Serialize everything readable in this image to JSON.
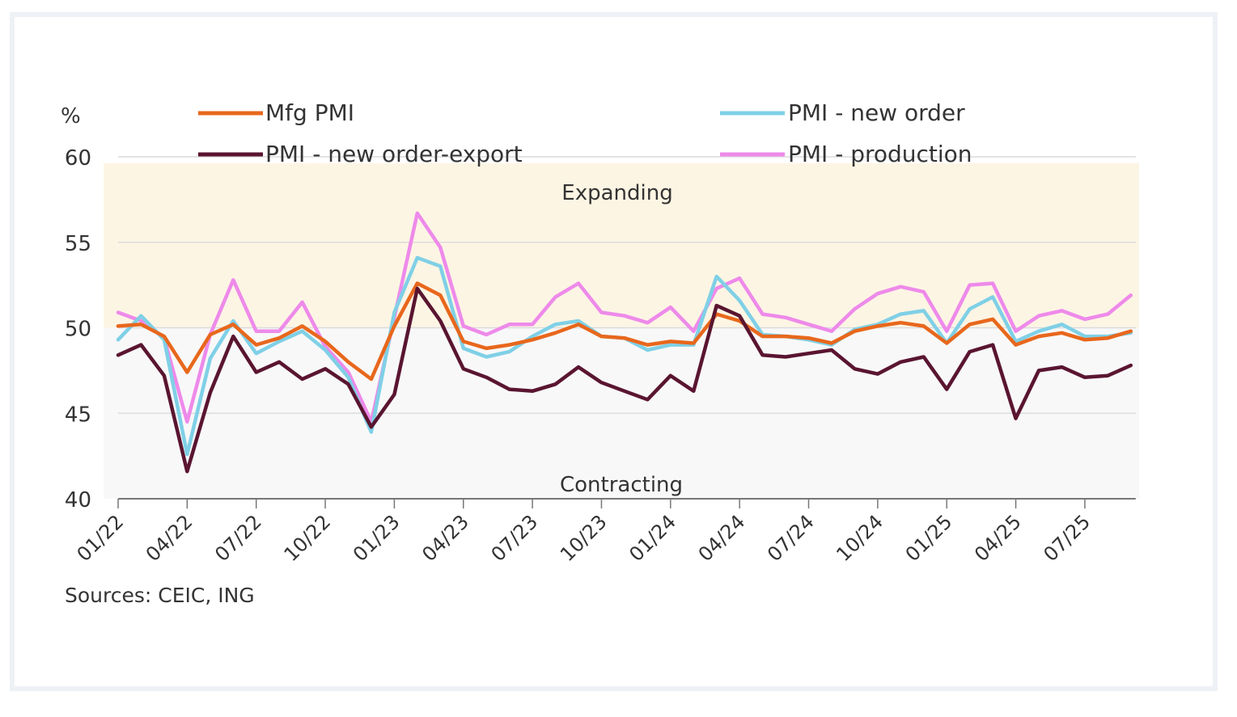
{
  "chart_data": {
    "type": "line",
    "title": "",
    "ylabel": "%",
    "xlabel": "",
    "ylim": [
      40,
      60
    ],
    "yticks": [
      60,
      55,
      50,
      45,
      40
    ],
    "grid": true,
    "legend_placement": "top",
    "source": "Sources: CEIC, ING",
    "bands": [
      {
        "label": "Expanding",
        "from": 50,
        "to": 60,
        "color": "#fdf5e4"
      },
      {
        "label": "Contracting",
        "from": 40,
        "to": 50,
        "color": "#f8f8f9"
      }
    ],
    "x": [
      "01/22",
      "02/22",
      "03/22",
      "04/22",
      "05/22",
      "06/22",
      "07/22",
      "08/22",
      "09/22",
      "10/22",
      "11/22",
      "12/22",
      "01/23",
      "02/23",
      "03/23",
      "04/23",
      "05/23",
      "06/23",
      "07/23",
      "08/23",
      "09/23",
      "10/23",
      "11/23",
      "12/23",
      "01/24",
      "02/24",
      "03/24",
      "04/24",
      "05/24",
      "06/24",
      "07/24",
      "08/24",
      "09/24",
      "10/24",
      "11/24",
      "12/24",
      "01/25",
      "02/25",
      "03/25",
      "04/25",
      "05/25",
      "06/25",
      "07/25",
      "08/25",
      "09/25"
    ],
    "xtick_labels": [
      "01/22",
      "04/22",
      "07/22",
      "10/22",
      "01/23",
      "04/23",
      "07/23",
      "10/23",
      "01/24",
      "04/24",
      "07/24",
      "10/24",
      "01/25",
      "04/25",
      "07/25"
    ],
    "series": [
      {
        "name": "Mfg PMI",
        "color": "#e8671c",
        "values": [
          50.1,
          50.2,
          49.5,
          47.4,
          49.6,
          50.2,
          49.0,
          49.4,
          50.1,
          49.2,
          48.0,
          47.0,
          50.1,
          52.6,
          51.9,
          49.2,
          48.8,
          49.0,
          49.3,
          49.7,
          50.2,
          49.5,
          49.4,
          49.0,
          49.2,
          49.1,
          50.8,
          50.4,
          49.5,
          49.5,
          49.4,
          49.1,
          49.8,
          50.1,
          50.3,
          50.1,
          49.1,
          50.2,
          50.5,
          49.0,
          49.5,
          49.7,
          49.3,
          49.4,
          49.8
        ]
      },
      {
        "name": "PMI - new order-export",
        "color": "#5a1530",
        "values": [
          48.4,
          49.0,
          47.2,
          41.6,
          46.2,
          49.5,
          47.4,
          48.0,
          47.0,
          47.6,
          46.7,
          44.2,
          46.1,
          52.3,
          50.4,
          47.6,
          47.1,
          46.4,
          46.3,
          46.7,
          47.7,
          46.8,
          46.3,
          45.8,
          47.2,
          46.3,
          51.3,
          50.7,
          48.4,
          48.3,
          48.5,
          48.7,
          47.6,
          47.3,
          48.0,
          48.3,
          46.4,
          48.6,
          49.0,
          44.7,
          47.5,
          47.7,
          47.1,
          47.2,
          47.8
        ]
      },
      {
        "name": "PMI - new order",
        "color": "#7fd0e6",
        "values": [
          49.3,
          50.7,
          49.3,
          42.6,
          48.2,
          50.4,
          48.5,
          49.2,
          49.8,
          48.7,
          47.1,
          43.9,
          50.9,
          54.1,
          53.6,
          48.8,
          48.3,
          48.6,
          49.5,
          50.2,
          50.4,
          49.5,
          49.4,
          48.7,
          49.0,
          49.0,
          53.0,
          51.6,
          49.6,
          49.5,
          49.3,
          49.0,
          49.9,
          50.2,
          50.8,
          51.0,
          49.1,
          51.1,
          51.8,
          49.2,
          49.8,
          50.2,
          49.5,
          49.5,
          49.7
        ]
      },
      {
        "name": "PMI - production",
        "color": "#ee8aea",
        "values": [
          50.9,
          50.4,
          49.4,
          44.5,
          49.6,
          52.8,
          49.8,
          49.8,
          51.5,
          48.9,
          47.4,
          44.5,
          50.6,
          56.7,
          54.7,
          50.1,
          49.6,
          50.2,
          50.2,
          51.8,
          52.6,
          50.9,
          50.7,
          50.3,
          51.2,
          49.8,
          52.3,
          52.9,
          50.8,
          50.6,
          50.2,
          49.8,
          51.1,
          52.0,
          52.4,
          52.1,
          49.8,
          52.5,
          52.6,
          49.8,
          50.7,
          51.0,
          50.5,
          50.8,
          51.9
        ]
      }
    ]
  },
  "legend": {
    "items": [
      {
        "label": "Mfg PMI",
        "color": "#e8671c"
      },
      {
        "label": "PMI - new order-export",
        "color": "#5a1530"
      },
      {
        "label": "PMI - new order",
        "color": "#7fd0e6"
      },
      {
        "label": "PMI - production",
        "color": "#ee8aea"
      }
    ]
  }
}
